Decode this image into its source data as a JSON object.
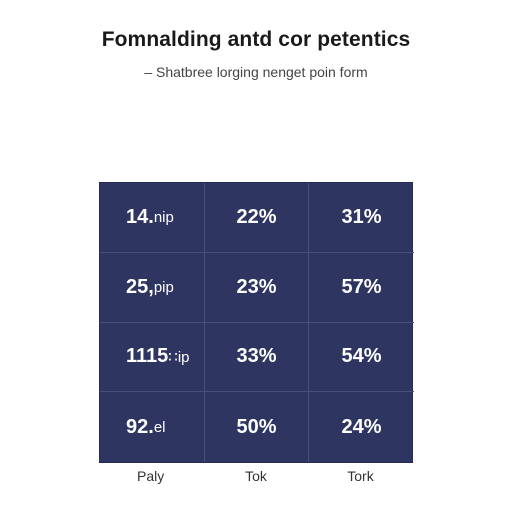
{
  "header": {
    "title": "Fomnalding antd cor petentics",
    "subtitle": "– Shatbree lorging nenget poin form"
  },
  "table": {
    "rows": [
      {
        "label_value": "14.",
        "label_unit": "nip",
        "col2": "22%",
        "col3": "31%"
      },
      {
        "label_value": "25,",
        "label_unit": "pip",
        "col2": "23%",
        "col3": "57%"
      },
      {
        "label_value": "1115",
        "label_unit": "∷ip",
        "col2": "33%",
        "col3": "54%"
      },
      {
        "label_value": "92.",
        "label_unit": "el",
        "col2": "50%",
        "col3": "24%"
      }
    ],
    "column_labels": [
      "Paly",
      "Tok",
      "Tork"
    ]
  },
  "colors": {
    "grid_background": "#2e3561",
    "grid_lines": "#49507a",
    "text_on_grid": "#ffffff"
  }
}
